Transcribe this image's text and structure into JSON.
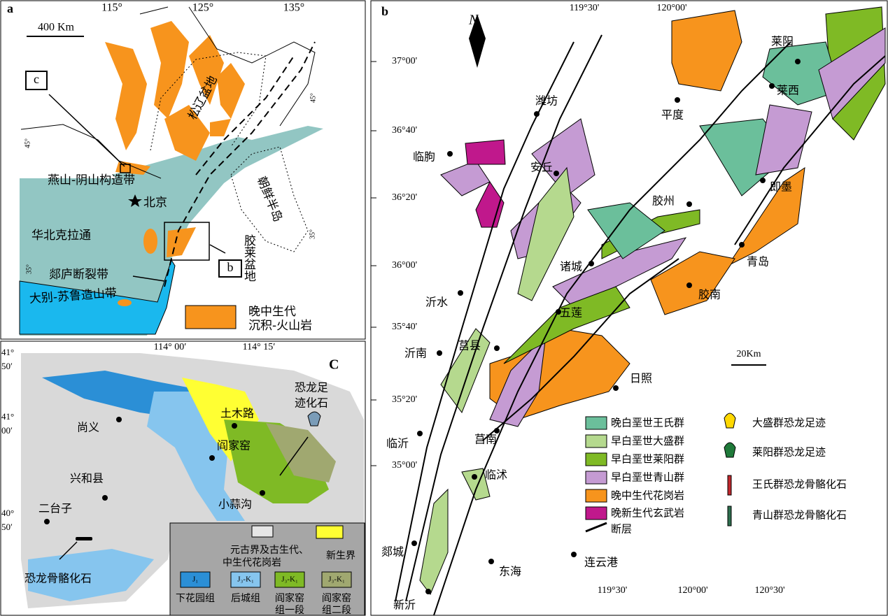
{
  "panel_a": {
    "label": "a",
    "lon_ticks": [
      "115°",
      "125°",
      "135°"
    ],
    "lat_ticks": [
      "45°",
      "45°",
      "35°",
      "35°"
    ],
    "scale": "400 Km",
    "inset_c": "c",
    "inset_b": "b",
    "labels": [
      "松辽盆地",
      "燕山-阴山构造带",
      "北京",
      "华北克拉通",
      "郯庐断裂带",
      "大别-苏鲁造山带",
      "胶莱盆地",
      "朝鲜半岛"
    ],
    "legend": [
      "晚中生代",
      "沉积-火山岩"
    ]
  },
  "panel_b": {
    "label": "b",
    "north": "N",
    "top_lon": [
      "119°30'",
      "120°00'"
    ],
    "bottom_lon": [
      "119°30'",
      "120°00'",
      "120°30'"
    ],
    "lat": [
      "37°00'",
      "36°40'",
      "36°20'",
      "36°00'",
      "35°40'",
      "35°20'",
      "35°00'"
    ],
    "cities": [
      "潍坊",
      "临朐",
      "安丘",
      "莱阳",
      "莱西",
      "平度",
      "即墨",
      "胶州",
      "青岛",
      "诸城",
      "胶南",
      "沂水",
      "五莲",
      "莒县",
      "沂南",
      "日照",
      "临沂",
      "莒南",
      "临沭",
      "郯城",
      "东海",
      "连云港",
      "新沂"
    ],
    "scale": "20Km",
    "legend": [
      "晚白垩世王氏群",
      "早白垩世大盛群",
      "早白垩世莱阳群",
      "早白垩世青山群",
      "晚中生代花岗岩",
      "晚新生代玄武岩",
      "断层"
    ],
    "fossil_legend": [
      "大盛群恐龙足迹",
      "莱阳群恐龙足迹",
      "王氏群恐龙骨骼化石",
      "青山群恐龙骨骼化石"
    ]
  },
  "panel_c": {
    "label": "C",
    "lon": [
      "114° 00′",
      "114° 15′"
    ],
    "lat": [
      [
        "41°",
        "50′"
      ],
      [
        "41°",
        "00′"
      ],
      [
        "40°",
        "50′"
      ]
    ],
    "cities": [
      "尚义",
      "兴和县",
      "二台子",
      "土木路",
      "阎家窑",
      "小蒜沟"
    ],
    "footprint": [
      "恐龙足",
      "迹化石"
    ],
    "bone": "恐龙骨骼化石",
    "legend_top": [
      "元古界及古生代、",
      "中生代花岗岩",
      "新生界"
    ],
    "units": [
      "J₁",
      "J₃-K₁",
      "J₃-K₁",
      "J₃-K₁"
    ],
    "unit_names": [
      [
        "下花园组"
      ],
      [
        "后城组"
      ],
      [
        "阎家窑",
        "组一段"
      ],
      [
        "阎家窑",
        "组二段"
      ]
    ]
  }
}
